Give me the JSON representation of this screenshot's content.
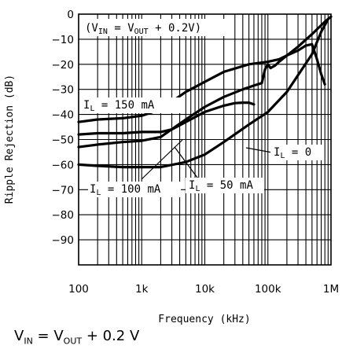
{
  "chart_data": {
    "type": "line",
    "xlabel": "Frequency (kHz)",
    "ylabel": "Ripple Rejection (dB)",
    "x_scale": "log",
    "xlim": [
      0.1,
      1000
    ],
    "ylim": [
      -100,
      0
    ],
    "x_ticks": [
      {
        "value": 0.1,
        "label": "100"
      },
      {
        "value": 1,
        "label": "1k"
      },
      {
        "value": 10,
        "label": "10k"
      },
      {
        "value": 100,
        "label": "100k"
      },
      {
        "value": 1000,
        "label": "1M"
      }
    ],
    "y_ticks": [
      {
        "value": 0,
        "label": "0"
      },
      {
        "value": -10,
        "label": "−10"
      },
      {
        "value": -20,
        "label": "−20"
      },
      {
        "value": -30,
        "label": "−30"
      },
      {
        "value": -40,
        "label": "−40"
      },
      {
        "value": -50,
        "label": "−50"
      },
      {
        "value": -60,
        "label": "−60"
      },
      {
        "value": -70,
        "label": "−70"
      },
      {
        "value": -80,
        "label": "−80"
      },
      {
        "value": -90,
        "label": "−90"
      }
    ],
    "grid": true,
    "condition": {
      "base": "(V",
      "sub1": "IN",
      "mid": " = V",
      "sub2": "OUT",
      "tail": " + 0.2V)"
    },
    "series": [
      {
        "name": "I_L = 150 mA",
        "x": [
          0.1,
          0.2,
          0.5,
          1,
          2,
          5,
          10,
          20,
          50,
          100,
          150,
          200,
          300,
          400,
          500,
          600,
          700,
          800
        ],
        "y": [
          -43,
          -42,
          -41.5,
          -40.5,
          -38,
          -31,
          -27,
          -23,
          -20,
          -19,
          -18,
          -16.5,
          -14.5,
          -12.5,
          -12,
          -18,
          -24,
          -28
        ]
      },
      {
        "name": "I_L = 100 mA",
        "x": [
          0.1,
          0.2,
          0.5,
          1,
          2,
          3,
          5,
          10,
          20,
          30,
          40,
          50,
          60
        ],
        "y": [
          -48,
          -47.5,
          -47.5,
          -47,
          -47,
          -46,
          -43,
          -39,
          -36.5,
          -35.5,
          -35.3,
          -35.3,
          -36
        ]
      },
      {
        "name": "I_L = 50 mA",
        "x": [
          0.1,
          0.2,
          0.5,
          1,
          2,
          5,
          10,
          20,
          40,
          60,
          80,
          90,
          100,
          110,
          130,
          150,
          200,
          300,
          500,
          800,
          1000
        ],
        "y": [
          -53,
          -52,
          -51,
          -50.5,
          -49,
          -42,
          -37,
          -33,
          -30,
          -28.5,
          -27.5,
          -22,
          -20,
          -21.5,
          -20.5,
          -19,
          -16.5,
          -13,
          -8,
          -3,
          -1
        ]
      },
      {
        "name": "I_L = 0",
        "x": [
          0.1,
          0.2,
          0.5,
          1,
          2,
          5,
          10,
          20,
          50,
          100,
          200,
          500,
          700,
          900
        ],
        "y": [
          -60,
          -60.5,
          -61,
          -61,
          -61,
          -59,
          -56,
          -51,
          -44,
          -39,
          -31,
          -16,
          -7,
          -2
        ]
      }
    ],
    "curve_labels": [
      {
        "main": "I",
        "sub": "L",
        "text": " = 150 mA"
      },
      {
        "main": "I",
        "sub": "L",
        "text": " = 100 mA"
      },
      {
        "main": "I",
        "sub": "L",
        "text": " = 50 mA"
      },
      {
        "main": "I",
        "sub": "L",
        "text": " = 0"
      }
    ]
  },
  "caption": {
    "base": "V",
    "sub1": "IN",
    "mid": " = V",
    "sub2": "OUT",
    "tail": " + 0.2 V"
  }
}
